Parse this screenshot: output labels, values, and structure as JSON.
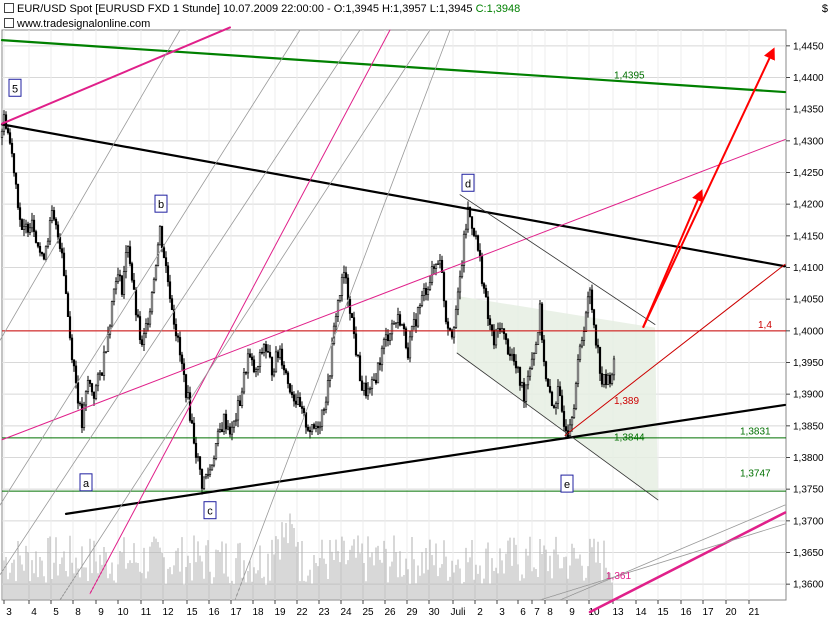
{
  "header": {
    "line1_main": "EUR/USD Spot [EURUSD FXD  1 Stunde] 10.07.2009 22:00:00 - O:1,3945 H:1,3957 L:1,3945 ",
    "line1_close": "C:1,3948",
    "line2": "www.tradesignalonline.com"
  },
  "y_unit": "$",
  "chart_data": {
    "type": "candlestick",
    "title": "EUR/USD Spot [EURUSD FXD  1 Stunde]",
    "ylim": [
      1.3575,
      1.4475
    ],
    "yticks": [
      1.36,
      1.365,
      1.37,
      1.375,
      1.38,
      1.385,
      1.39,
      1.395,
      1.4,
      1.405,
      1.41,
      1.415,
      1.42,
      1.425,
      1.43,
      1.435,
      1.44,
      1.445
    ],
    "ytick_labels": [
      "1,3600",
      "1,3650",
      "1,3700",
      "1,3750",
      "1,3800",
      "1,3850",
      "1,3900",
      "1,3950",
      "1,4000",
      "1,4050",
      "1,4100",
      "1,4150",
      "1,4200",
      "1,4250",
      "1,4300",
      "1,4350",
      "1,4400",
      "1,4450"
    ],
    "x_labels": [
      "3",
      "4",
      "5",
      "8",
      "9",
      "10",
      "11",
      "12",
      "15",
      "16",
      "17",
      "18",
      "19",
      "22",
      "23",
      "24",
      "25",
      "26",
      "29",
      "30",
      "Juli",
      "2",
      "3",
      "6",
      "7",
      "8",
      "9",
      "10",
      "13",
      "14",
      "15",
      "16",
      "17",
      "20",
      "21"
    ],
    "price_path": [
      [
        0,
        1.4305
      ],
      [
        5,
        1.434
      ],
      [
        14,
        1.426
      ],
      [
        22,
        1.415
      ],
      [
        32,
        1.418
      ],
      [
        42,
        1.411
      ],
      [
        52,
        1.418
      ],
      [
        62,
        1.413
      ],
      [
        70,
        1.399
      ],
      [
        76,
        1.392
      ],
      [
        82,
        1.385
      ],
      [
        88,
        1.392
      ],
      [
        94,
        1.39
      ],
      [
        102,
        1.394
      ],
      [
        110,
        1.402
      ],
      [
        116,
        1.409
      ],
      [
        122,
        1.407
      ],
      [
        128,
        1.414
      ],
      [
        135,
        1.404
      ],
      [
        142,
        1.397
      ],
      [
        150,
        1.404
      ],
      [
        160,
        1.416
      ],
      [
        166,
        1.41
      ],
      [
        172,
        1.404
      ],
      [
        180,
        1.396
      ],
      [
        188,
        1.389
      ],
      [
        196,
        1.381
      ],
      [
        202,
        1.376
      ],
      [
        210,
        1.378
      ],
      [
        216,
        1.382
      ],
      [
        224,
        1.386
      ],
      [
        232,
        1.384
      ],
      [
        240,
        1.389
      ],
      [
        248,
        1.396
      ],
      [
        256,
        1.393
      ],
      [
        264,
        1.398
      ],
      [
        272,
        1.394
      ],
      [
        280,
        1.397
      ],
      [
        288,
        1.392
      ],
      [
        296,
        1.389
      ],
      [
        304,
        1.386
      ],
      [
        312,
        1.384
      ],
      [
        320,
        1.386
      ],
      [
        328,
        1.391
      ],
      [
        336,
        1.403
      ],
      [
        344,
        1.409
      ],
      [
        350,
        1.404
      ],
      [
        356,
        1.397
      ],
      [
        362,
        1.391
      ],
      [
        370,
        1.39
      ],
      [
        376,
        1.393
      ],
      [
        384,
        1.398
      ],
      [
        392,
        1.401
      ],
      [
        400,
        1.402
      ],
      [
        408,
        1.397
      ],
      [
        416,
        1.402
      ],
      [
        424,
        1.406
      ],
      [
        432,
        1.409
      ],
      [
        440,
        1.412
      ],
      [
        446,
        1.402
      ],
      [
        452,
        1.4
      ],
      [
        458,
        1.405
      ],
      [
        464,
        1.414
      ],
      [
        468,
        1.419
      ],
      [
        474,
        1.416
      ],
      [
        480,
        1.411
      ],
      [
        488,
        1.402
      ],
      [
        494,
        1.398
      ],
      [
        500,
        1.401
      ],
      [
        506,
        1.398
      ],
      [
        512,
        1.396
      ],
      [
        518,
        1.393
      ],
      [
        524,
        1.39
      ],
      [
        530,
        1.395
      ],
      [
        536,
        1.398
      ],
      [
        540,
        1.403
      ],
      [
        546,
        1.392
      ],
      [
        552,
        1.388
      ],
      [
        558,
        1.39
      ],
      [
        564,
        1.386
      ],
      [
        568,
        1.3845
      ],
      [
        574,
        1.389
      ],
      [
        580,
        1.397
      ],
      [
        586,
        1.403
      ],
      [
        590,
        1.406
      ],
      [
        596,
        1.399
      ],
      [
        602,
        1.392
      ],
      [
        608,
        1.392
      ],
      [
        614,
        1.3945
      ]
    ],
    "levels": [
      {
        "value": 1.4,
        "label": "1,4",
        "color": "#cc0000"
      },
      {
        "value": 1.3831,
        "label": "1,3831",
        "color": "#007000"
      },
      {
        "value": 1.3747,
        "label": "1,3747",
        "color": "#007000"
      }
    ],
    "trendlines": [
      {
        "color": "#000000",
        "width": 2.2,
        "x1": 2,
        "y1": 1.4326,
        "x2": 785,
        "y2": 1.4102
      },
      {
        "color": "#000000",
        "width": 2.2,
        "x1": 66,
        "y1": 1.3711,
        "x2": 785,
        "y2": 1.3883
      },
      {
        "color": "#008000",
        "width": 2.2,
        "x1": 2,
        "y1": 1.4459,
        "x2": 785,
        "y2": 1.4377
      },
      {
        "color": "#e0208a",
        "width": 2,
        "x1": 2,
        "y1": 1.4327,
        "x2": 230,
        "y2": 1.4479
      },
      {
        "color": "#e0208a",
        "width": 2.5,
        "x1": 590,
        "y1": 1.3556,
        "x2": 785,
        "y2": 1.3713
      },
      {
        "color": "#e0208a",
        "width": 1,
        "x1": 2,
        "y1": 1.3828,
        "x2": 785,
        "y2": 1.4302
      },
      {
        "color": "#e0208a",
        "width": 1,
        "x1": 90,
        "y1": 1.3585,
        "x2": 390,
        "y2": 1.4475
      },
      {
        "color": "#cc0000",
        "width": 1,
        "x1": 565,
        "y1": 1.3835,
        "x2": 785,
        "y2": 1.4105
      },
      {
        "color": "#999999",
        "width": 0.8,
        "x1": 0,
        "y1": 1.3725,
        "x2": 300,
        "y2": 1.4475
      },
      {
        "color": "#999999",
        "width": 0.8,
        "x1": 0,
        "y1": 1.3985,
        "x2": 180,
        "y2": 1.4475
      },
      {
        "color": "#999999",
        "width": 0.8,
        "x1": 0,
        "y1": 1.3615,
        "x2": 360,
        "y2": 1.4475
      },
      {
        "color": "#999999",
        "width": 0.8,
        "x1": 60,
        "y1": 1.3575,
        "x2": 430,
        "y2": 1.4475
      },
      {
        "color": "#999999",
        "width": 0.8,
        "x1": 235,
        "y1": 1.3575,
        "x2": 450,
        "y2": 1.4475
      },
      {
        "color": "#999999",
        "width": 0.8,
        "x1": 540,
        "y1": 1.3575,
        "x2": 785,
        "y2": 1.3695
      },
      {
        "color": "#999999",
        "width": 0.8,
        "x1": 560,
        "y1": 1.3575,
        "x2": 785,
        "y2": 1.3725
      },
      {
        "color": "#333333",
        "width": 0.8,
        "x1": 460,
        "y1": 1.4215,
        "x2": 655,
        "y2": 1.401
      },
      {
        "color": "#333333",
        "width": 0.8,
        "x1": 457,
        "y1": 1.3965,
        "x2": 658,
        "y2": 1.3733
      }
    ],
    "wave_labels": [
      {
        "text": "5",
        "x": 15,
        "y": 1.4383
      },
      {
        "text": "a",
        "x": 86,
        "y": 1.376
      },
      {
        "text": "b",
        "x": 161,
        "y": 1.42
      },
      {
        "text": "c",
        "x": 210,
        "y": 1.3716
      },
      {
        "text": "d",
        "x": 468,
        "y": 1.4233
      },
      {
        "text": "e",
        "x": 567,
        "y": 1.3758
      }
    ],
    "value_labels": [
      {
        "text": "1,4395",
        "x": 614,
        "y": 1.4395,
        "color": "#007000"
      },
      {
        "text": "1,4",
        "x": 758,
        "y": 1.4001,
        "color": "#cc0000"
      },
      {
        "text": "1,3831",
        "x": 740,
        "y": 1.3833,
        "color": "#007000"
      },
      {
        "text": "1,3747",
        "x": 740,
        "y": 1.3767,
        "color": "#007000"
      },
      {
        "text": "1,389",
        "x": 614,
        "y": 1.3881,
        "color": "#cc0000"
      },
      {
        "text": "1,3844",
        "x": 614,
        "y": 1.3824,
        "color": "#007000"
      },
      {
        "text": "1,361",
        "x": 606,
        "y": 1.3605,
        "color": "#e0208a"
      }
    ],
    "arrows": [
      {
        "x1": 643,
        "y1": 1.4005,
        "x2": 772,
        "y2": 1.4439,
        "color": "#ff0000"
      },
      {
        "x1": 643,
        "y1": 1.4005,
        "x2": 700,
        "y2": 1.4215,
        "color": "#ff0000"
      }
    ]
  }
}
